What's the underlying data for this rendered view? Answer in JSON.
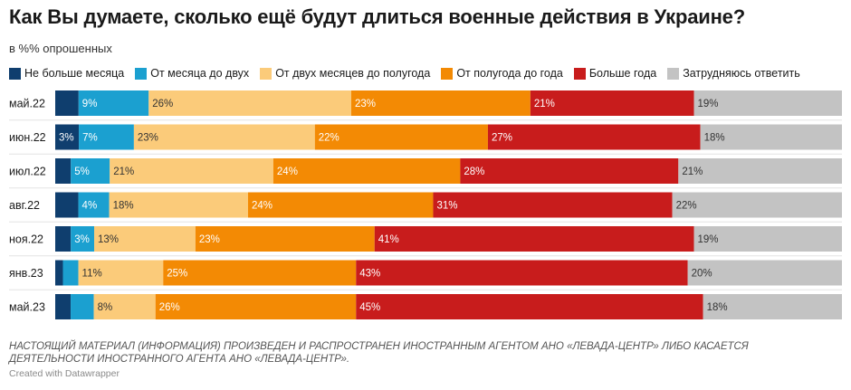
{
  "title": "Как Вы думаете, сколько ещё будут длиться военные действия в Украине?",
  "subtitle": "в %% опрошенных",
  "note": "НАСТОЯЩИЙ МАТЕРИАЛ (ИНФОРМАЦИЯ) ПРОИЗВЕДЕН И РАСПРОСТРАНЕН ИНОСТРАННЫМ АГЕНТОМ АНО «ЛЕВАДА-ЦЕНТР» ЛИБО КАСАЕТСЯ ДЕЯТЕЛЬНОСТИ ИНОСТРАННОГО АГЕНТА АНО «ЛЕВАДА-ЦЕНТР».",
  "credit": "Created with Datawrapper",
  "chart_data": {
    "type": "bar",
    "stacked": true,
    "orientation": "horizontal",
    "title": "Как Вы думаете, сколько ещё будут длиться военные действия в Украине?",
    "subtitle": "в %% опрошенных",
    "legend_position": "top",
    "categories": [
      "май.22",
      "июн.22",
      "июл.22",
      "авг.22",
      "ноя.22",
      "янв.23",
      "май.23"
    ],
    "series": [
      {
        "name": "Не больше месяца",
        "color": "#0f3e6e",
        "values": [
          3,
          3,
          2,
          3,
          2,
          1,
          2
        ]
      },
      {
        "name": "От месяца до двух",
        "color": "#1ba0d0",
        "values": [
          9,
          7,
          5,
          4,
          3,
          2,
          3
        ]
      },
      {
        "name": "От двух месяцев до полугода",
        "color": "#fbcb7a",
        "values": [
          26,
          23,
          21,
          18,
          13,
          11,
          8
        ]
      },
      {
        "name": "От полугода до года",
        "color": "#f38a04",
        "values": [
          23,
          22,
          24,
          24,
          23,
          25,
          26
        ]
      },
      {
        "name": "Больше года",
        "color": "#c81c1c",
        "values": [
          21,
          27,
          28,
          31,
          41,
          43,
          45
        ]
      },
      {
        "name": "Затрудняюсь ответить",
        "color": "#c3c3c3",
        "values": [
          19,
          18,
          21,
          22,
          19,
          20,
          18
        ]
      }
    ],
    "data_labels": [
      [
        "",
        "9%",
        "26%",
        "23%",
        "21%",
        "19%"
      ],
      [
        "3%",
        "7%",
        "23%",
        "22%",
        "27%",
        "18%"
      ],
      [
        "",
        "5%",
        "21%",
        "24%",
        "28%",
        "21%"
      ],
      [
        "",
        "4%",
        "18%",
        "24%",
        "31%",
        "22%"
      ],
      [
        "",
        "3%",
        "13%",
        "23%",
        "41%",
        "19%"
      ],
      [
        "",
        "",
        "11%",
        "25%",
        "43%",
        "20%"
      ],
      [
        "",
        "",
        "8%",
        "26%",
        "45%",
        "18%"
      ]
    ],
    "label_colors": [
      "#ffffff",
      "#ffffff",
      "#333333",
      "#ffffff",
      "#ffffff",
      "#333333"
    ],
    "xlim": [
      0,
      100
    ]
  }
}
